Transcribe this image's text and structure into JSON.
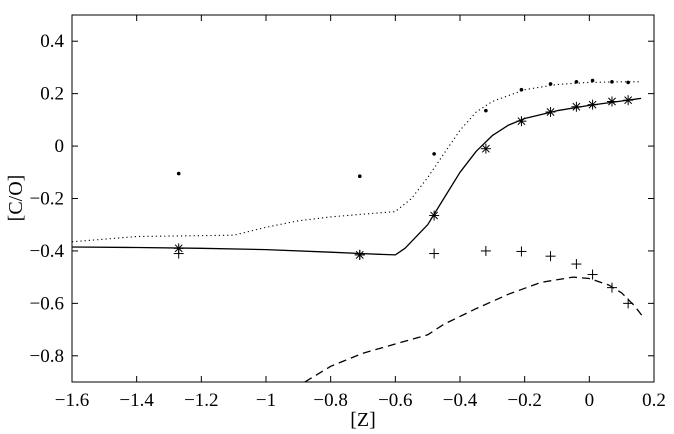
{
  "chart_data": {
    "type": "line",
    "title": "",
    "xlabel": "[Z]",
    "ylabel": "[C/O]",
    "xlim": [
      -1.6,
      0.2
    ],
    "ylim": [
      -0.9,
      0.5
    ],
    "xticks": [
      -1.6,
      -1.4,
      -1.2,
      -1,
      -0.8,
      -0.6,
      -0.4,
      -0.2,
      0,
      0.2
    ],
    "xtick_labels": [
      "−1.6",
      "−1.4",
      "−1.2",
      "−1",
      "−0.8",
      "−0.6",
      "−0.4",
      "−0.2",
      "0",
      "0.2"
    ],
    "yticks": [
      0.4,
      0.2,
      0,
      -0.2,
      -0.4,
      -0.6,
      -0.8
    ],
    "ytick_labels": [
      "0.4",
      "0.2",
      "0",
      "−0.2",
      "−0.4",
      "−0.6",
      "−0.8"
    ],
    "grid": false,
    "legend": "none",
    "series": [
      {
        "style": "solid",
        "points": [
          [
            -1.6,
            -0.385
          ],
          [
            -1.4,
            -0.387
          ],
          [
            -1.2,
            -0.39
          ],
          [
            -1.0,
            -0.395
          ],
          [
            -0.8,
            -0.405
          ],
          [
            -0.7,
            -0.41
          ],
          [
            -0.65,
            -0.413
          ],
          [
            -0.6,
            -0.415
          ],
          [
            -0.57,
            -0.39
          ],
          [
            -0.5,
            -0.3
          ],
          [
            -0.45,
            -0.2
          ],
          [
            -0.4,
            -0.1
          ],
          [
            -0.35,
            -0.02
          ],
          [
            -0.3,
            0.04
          ],
          [
            -0.25,
            0.08
          ],
          [
            -0.2,
            0.105
          ],
          [
            -0.1,
            0.135
          ],
          [
            0.0,
            0.155
          ],
          [
            0.1,
            0.172
          ],
          [
            0.16,
            0.182
          ]
        ]
      },
      {
        "style": "dotted",
        "points": [
          [
            -1.6,
            -0.365
          ],
          [
            -1.4,
            -0.345
          ],
          [
            -1.1,
            -0.34
          ],
          [
            -1.0,
            -0.31
          ],
          [
            -0.9,
            -0.285
          ],
          [
            -0.8,
            -0.27
          ],
          [
            -0.7,
            -0.26
          ],
          [
            -0.6,
            -0.25
          ],
          [
            -0.55,
            -0.2
          ],
          [
            -0.5,
            -0.12
          ],
          [
            -0.45,
            -0.03
          ],
          [
            -0.4,
            0.06
          ],
          [
            -0.35,
            0.13
          ],
          [
            -0.3,
            0.17
          ],
          [
            -0.2,
            0.215
          ],
          [
            -0.1,
            0.235
          ],
          [
            0.0,
            0.243
          ],
          [
            0.1,
            0.245
          ],
          [
            0.16,
            0.245
          ]
        ]
      },
      {
        "style": "dashed",
        "points": [
          [
            -0.88,
            -0.9
          ],
          [
            -0.8,
            -0.84
          ],
          [
            -0.7,
            -0.79
          ],
          [
            -0.6,
            -0.755
          ],
          [
            -0.5,
            -0.72
          ],
          [
            -0.45,
            -0.68
          ],
          [
            -0.35,
            -0.62
          ],
          [
            -0.25,
            -0.565
          ],
          [
            -0.15,
            -0.52
          ],
          [
            -0.05,
            -0.5
          ],
          [
            0.0,
            -0.505
          ],
          [
            0.06,
            -0.53
          ],
          [
            0.1,
            -0.56
          ],
          [
            0.14,
            -0.61
          ],
          [
            0.165,
            -0.65
          ]
        ]
      },
      {
        "style": "markers-asterisk",
        "points": [
          [
            -1.27,
            -0.39
          ],
          [
            -0.71,
            -0.415
          ],
          [
            -0.48,
            -0.265
          ],
          [
            -0.32,
            -0.01
          ],
          [
            -0.21,
            0.095
          ],
          [
            -0.12,
            0.13
          ],
          [
            -0.04,
            0.15
          ],
          [
            0.01,
            0.158
          ],
          [
            0.07,
            0.17
          ],
          [
            0.12,
            0.175
          ]
        ]
      },
      {
        "style": "markers-dot",
        "points": [
          [
            -1.27,
            -0.105
          ],
          [
            -0.71,
            -0.115
          ],
          [
            -0.48,
            -0.03
          ],
          [
            -0.32,
            0.135
          ],
          [
            -0.21,
            0.215
          ],
          [
            -0.12,
            0.237
          ],
          [
            -0.04,
            0.245
          ],
          [
            0.01,
            0.25
          ],
          [
            0.07,
            0.245
          ],
          [
            0.12,
            0.243
          ]
        ]
      },
      {
        "style": "markers-plus",
        "points": [
          [
            -1.27,
            -0.41
          ],
          [
            -0.71,
            -0.415
          ],
          [
            -0.48,
            -0.41
          ],
          [
            -0.32,
            -0.4
          ],
          [
            -0.21,
            -0.402
          ],
          [
            -0.12,
            -0.42
          ],
          [
            -0.04,
            -0.45
          ],
          [
            0.01,
            -0.49
          ],
          [
            0.07,
            -0.54
          ],
          [
            0.12,
            -0.6
          ]
        ]
      }
    ]
  }
}
